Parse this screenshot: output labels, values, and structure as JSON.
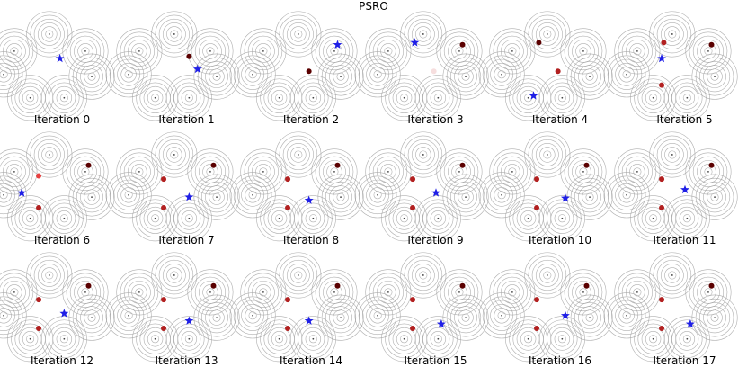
{
  "figure": {
    "title": "PSRO"
  },
  "chart_data": {
    "type": "scatter",
    "title": "PSRO",
    "description_of_panels": "18 panels, each showing 7 Gaussian mixture components (concentric contour circles) arranged in a ring, population strategies (red dots, darker = older/more weight), and the current best response (blue star).",
    "colors": {
      "contour": "#a0a0a0",
      "best_response": "#1f1fe6",
      "population_dark": "#5a0000",
      "population_mid": "#b22020",
      "population_light": "#e84040",
      "faint": "#f6dede"
    },
    "mode_centers": [
      [
        0.05,
        0.62
      ],
      [
        0.38,
        0.78
      ],
      [
        0.72,
        0.62
      ],
      [
        0.78,
        0.38
      ],
      [
        0.52,
        0.18
      ],
      [
        0.2,
        0.18
      ],
      [
        -0.05,
        0.4
      ]
    ],
    "panels": [
      {
        "label": "Iteration 0",
        "star": [
          0.48,
          0.55
        ],
        "points": []
      },
      {
        "label": "Iteration 1",
        "star": [
          0.6,
          0.45
        ],
        "points": [
          {
            "x": 0.52,
            "y": 0.57,
            "shade": "dark"
          }
        ]
      },
      {
        "label": "Iteration 2",
        "star": [
          0.75,
          0.68
        ],
        "points": [
          {
            "x": 0.48,
            "y": 0.43,
            "shade": "dark"
          }
        ]
      },
      {
        "label": "Iteration 3",
        "star": [
          0.3,
          0.7
        ],
        "points": [
          {
            "x": 0.75,
            "y": 0.68,
            "shade": "dark"
          },
          {
            "x": 0.48,
            "y": 0.43,
            "shade": "faint"
          }
        ]
      },
      {
        "label": "Iteration 4",
        "star": [
          0.25,
          0.2
        ],
        "points": [
          {
            "x": 0.3,
            "y": 0.7,
            "shade": "dark"
          },
          {
            "x": 0.48,
            "y": 0.43,
            "shade": "mid"
          }
        ]
      },
      {
        "label": "Iteration 5",
        "star": [
          0.28,
          0.55
        ],
        "points": [
          {
            "x": 0.75,
            "y": 0.68,
            "shade": "dark"
          },
          {
            "x": 0.3,
            "y": 0.7,
            "shade": "mid"
          },
          {
            "x": 0.28,
            "y": 0.3,
            "shade": "mid"
          }
        ]
      },
      {
        "label": "Iteration 6",
        "star": [
          0.12,
          0.42
        ],
        "points": [
          {
            "x": 0.75,
            "y": 0.68,
            "shade": "dark"
          },
          {
            "x": 0.28,
            "y": 0.58,
            "shade": "light"
          },
          {
            "x": 0.28,
            "y": 0.28,
            "shade": "mid"
          }
        ]
      },
      {
        "label": "Iteration 7",
        "star": [
          0.52,
          0.38
        ],
        "points": [
          {
            "x": 0.75,
            "y": 0.68,
            "shade": "dark"
          },
          {
            "x": 0.28,
            "y": 0.55,
            "shade": "mid"
          },
          {
            "x": 0.28,
            "y": 0.28,
            "shade": "mid"
          }
        ]
      },
      {
        "label": "Iteration 8",
        "star": [
          0.48,
          0.35
        ],
        "points": [
          {
            "x": 0.75,
            "y": 0.68,
            "shade": "dark"
          },
          {
            "x": 0.28,
            "y": 0.55,
            "shade": "mid"
          },
          {
            "x": 0.28,
            "y": 0.28,
            "shade": "mid"
          }
        ]
      },
      {
        "label": "Iteration 9",
        "star": [
          0.5,
          0.42
        ],
        "points": [
          {
            "x": 0.75,
            "y": 0.68,
            "shade": "dark"
          },
          {
            "x": 0.28,
            "y": 0.55,
            "shade": "mid"
          },
          {
            "x": 0.28,
            "y": 0.28,
            "shade": "mid"
          }
        ]
      },
      {
        "label": "Iteration 10",
        "star": [
          0.55,
          0.37
        ],
        "points": [
          {
            "x": 0.75,
            "y": 0.68,
            "shade": "dark"
          },
          {
            "x": 0.28,
            "y": 0.55,
            "shade": "mid"
          },
          {
            "x": 0.28,
            "y": 0.28,
            "shade": "mid"
          }
        ]
      },
      {
        "label": "Iteration 11",
        "star": [
          0.5,
          0.45
        ],
        "points": [
          {
            "x": 0.75,
            "y": 0.68,
            "shade": "dark"
          },
          {
            "x": 0.28,
            "y": 0.55,
            "shade": "mid"
          },
          {
            "x": 0.28,
            "y": 0.28,
            "shade": "mid"
          }
        ]
      },
      {
        "label": "Iteration 12",
        "star": [
          0.52,
          0.42
        ],
        "points": [
          {
            "x": 0.75,
            "y": 0.68,
            "shade": "dark"
          },
          {
            "x": 0.28,
            "y": 0.55,
            "shade": "mid"
          },
          {
            "x": 0.28,
            "y": 0.28,
            "shade": "mid"
          }
        ]
      },
      {
        "label": "Iteration 13",
        "star": [
          0.52,
          0.35
        ],
        "points": [
          {
            "x": 0.75,
            "y": 0.68,
            "shade": "dark"
          },
          {
            "x": 0.28,
            "y": 0.55,
            "shade": "mid"
          },
          {
            "x": 0.28,
            "y": 0.28,
            "shade": "mid"
          }
        ]
      },
      {
        "label": "Iteration 14",
        "star": [
          0.48,
          0.35
        ],
        "points": [
          {
            "x": 0.75,
            "y": 0.68,
            "shade": "dark"
          },
          {
            "x": 0.28,
            "y": 0.55,
            "shade": "mid"
          },
          {
            "x": 0.28,
            "y": 0.28,
            "shade": "mid"
          }
        ]
      },
      {
        "label": "Iteration 15",
        "star": [
          0.55,
          0.32
        ],
        "points": [
          {
            "x": 0.75,
            "y": 0.68,
            "shade": "dark"
          },
          {
            "x": 0.28,
            "y": 0.55,
            "shade": "mid"
          },
          {
            "x": 0.28,
            "y": 0.28,
            "shade": "mid"
          }
        ]
      },
      {
        "label": "Iteration 16",
        "star": [
          0.55,
          0.4
        ],
        "points": [
          {
            "x": 0.75,
            "y": 0.68,
            "shade": "dark"
          },
          {
            "x": 0.28,
            "y": 0.55,
            "shade": "mid"
          },
          {
            "x": 0.28,
            "y": 0.28,
            "shade": "mid"
          }
        ]
      },
      {
        "label": "Iteration 17",
        "star": [
          0.55,
          0.32
        ],
        "points": [
          {
            "x": 0.75,
            "y": 0.68,
            "shade": "dark"
          },
          {
            "x": 0.28,
            "y": 0.55,
            "shade": "mid"
          },
          {
            "x": 0.28,
            "y": 0.28,
            "shade": "mid"
          }
        ]
      }
    ]
  }
}
